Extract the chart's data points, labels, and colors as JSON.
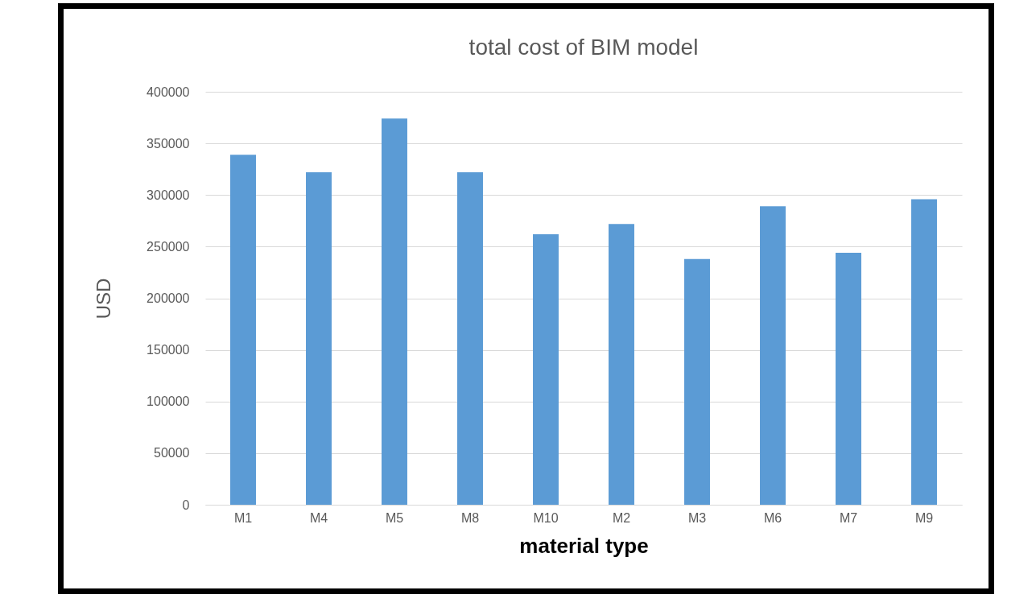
{
  "chart_data": {
    "type": "bar",
    "title": "total cost of BIM model",
    "xlabel": "material type",
    "ylabel": "USD",
    "categories": [
      "M1",
      "M4",
      "M5",
      "M8",
      "M10",
      "M2",
      "M3",
      "M6",
      "M7",
      "M9"
    ],
    "values": [
      339000,
      322000,
      374000,
      322000,
      262000,
      272000,
      238000,
      289000,
      244000,
      296000
    ],
    "color": "#5b9bd5",
    "ylim": [
      0,
      400000
    ],
    "yticks": [
      0,
      50000,
      100000,
      150000,
      200000,
      250000,
      300000,
      350000,
      400000
    ],
    "grid": "y"
  }
}
